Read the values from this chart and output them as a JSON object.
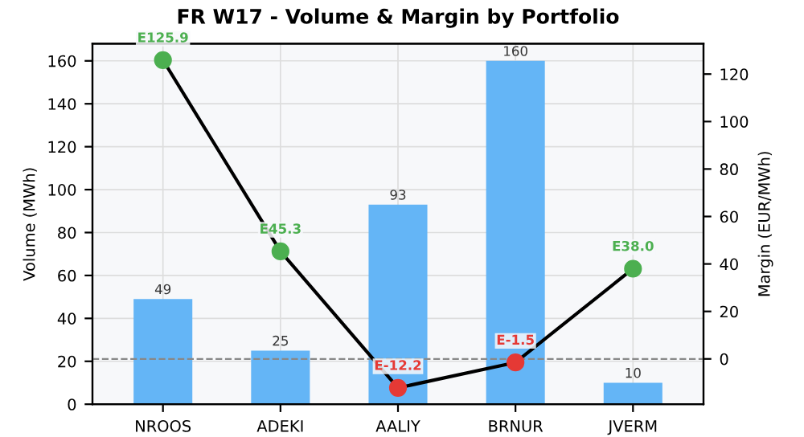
{
  "chart_data": {
    "type": "bar",
    "title": "FR W17 - Volume & Margin by Portfolio",
    "ylabel": "Volume (MWh)",
    "y2label": "Margin (EUR/MWh)",
    "categories": [
      "NROOS",
      "ADEKI",
      "AALIY",
      "BRNUR",
      "JVERM"
    ],
    "series": [
      {
        "color": "#64b5f6",
        "values": [
          49,
          25,
          93,
          160,
          10
        ],
        "value_labels": [
          "49",
          "25",
          "93",
          "160",
          "10"
        ]
      },
      {
        "type": "line",
        "axis": "y2",
        "color": "#000000",
        "colors": [
          "#4caf50",
          "#4caf50",
          "#e53935",
          "#e53935",
          "#4caf50"
        ],
        "values": [
          125.9,
          45.3,
          -12.2,
          -1.5,
          38.0
        ],
        "value_labels": [
          "E125.9",
          "E45.3",
          "E-12.2",
          "E-1.5",
          "E38.0"
        ],
        "marker": "circle"
      }
    ],
    "ylim": [
      0,
      168
    ],
    "yticks": [
      0,
      20,
      40,
      60,
      80,
      100,
      120,
      140,
      160
    ],
    "y2lim": [
      -19.1,
      132.8
    ],
    "y2ticks": [
      0,
      20,
      40,
      60,
      80,
      100,
      120
    ],
    "ref_lines": [
      {
        "axis": "y2",
        "value": 0,
        "color": "#888888",
        "line_style": "dashed"
      }
    ],
    "grid": true
  }
}
